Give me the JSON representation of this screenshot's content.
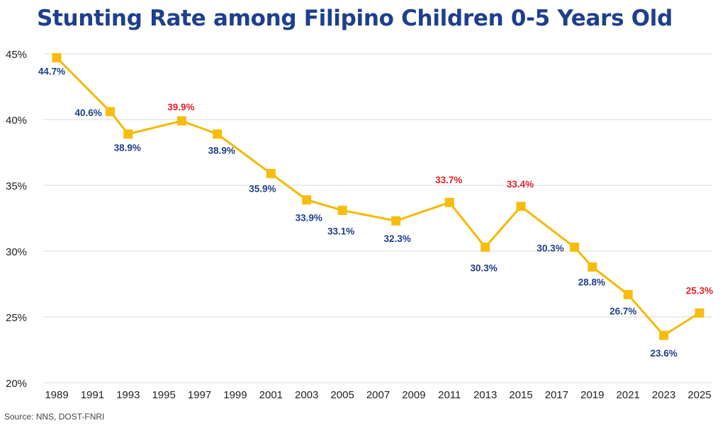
{
  "title": "Stunting Rate among Filipino Children 0-5 Years Old",
  "source": "Source: NNS, DOST-FNRI",
  "colors": {
    "line": "#f5b800",
    "marker": "#f7bd0c",
    "label_default": "#1f3f8c",
    "label_highlight": "#e8202a",
    "grid": "#d9d9d9"
  },
  "chart_data": {
    "type": "line",
    "title": "Stunting Rate among Filipino Children 0-5 Years Old",
    "xlabel": "",
    "ylabel": "",
    "x_ticks": [
      "1989",
      "1991",
      "1993",
      "1995",
      "1997",
      "1999",
      "2001",
      "2003",
      "2005",
      "2007",
      "2009",
      "2011",
      "2013",
      "2015",
      "2017",
      "2019",
      "2021",
      "2023",
      "2025"
    ],
    "y_ticks": [
      "20%",
      "25%",
      "30%",
      "35%",
      "40%",
      "45%"
    ],
    "ylim": [
      20,
      45
    ],
    "xlim": [
      1989,
      2025
    ],
    "grid": "horizontal",
    "series": [
      {
        "points": [
          {
            "x": 1989.0,
            "y": 44.7,
            "label": "44.7%",
            "highlight": false
          },
          {
            "x": 1992.0,
            "y": 40.6,
            "label": "40.6%",
            "highlight": false
          },
          {
            "x": 1993.0,
            "y": 38.9,
            "label": "38.9%",
            "highlight": false
          },
          {
            "x": 1996.0,
            "y": 39.9,
            "label": "39.9%",
            "highlight": true
          },
          {
            "x": 1998.0,
            "y": 38.9,
            "label": "38.9%",
            "highlight": false
          },
          {
            "x": 2001.0,
            "y": 35.9,
            "label": "35.9%",
            "highlight": false
          },
          {
            "x": 2003.0,
            "y": 33.9,
            "label": "33.9%",
            "highlight": false
          },
          {
            "x": 2005.0,
            "y": 33.1,
            "label": "33.1%",
            "highlight": false
          },
          {
            "x": 2008.0,
            "y": 32.3,
            "label": "32.3%",
            "highlight": false
          },
          {
            "x": 2011.0,
            "y": 33.7,
            "label": "33.7%",
            "highlight": true
          },
          {
            "x": 2013.0,
            "y": 30.3,
            "label": "30.3%",
            "highlight": false
          },
          {
            "x": 2015.0,
            "y": 33.4,
            "label": "33.4%",
            "highlight": true
          },
          {
            "x": 2018.0,
            "y": 30.3,
            "label": "30.3%",
            "highlight": false
          },
          {
            "x": 2019.0,
            "y": 28.8,
            "label": "28.8%",
            "highlight": false
          },
          {
            "x": 2021.0,
            "y": 26.7,
            "label": "26.7%",
            "highlight": false
          },
          {
            "x": 2023.0,
            "y": 23.6,
            "label": "23.6%",
            "highlight": false
          },
          {
            "x": 2025.0,
            "y": 25.3,
            "label": "25.3%",
            "highlight": true
          }
        ]
      }
    ]
  }
}
